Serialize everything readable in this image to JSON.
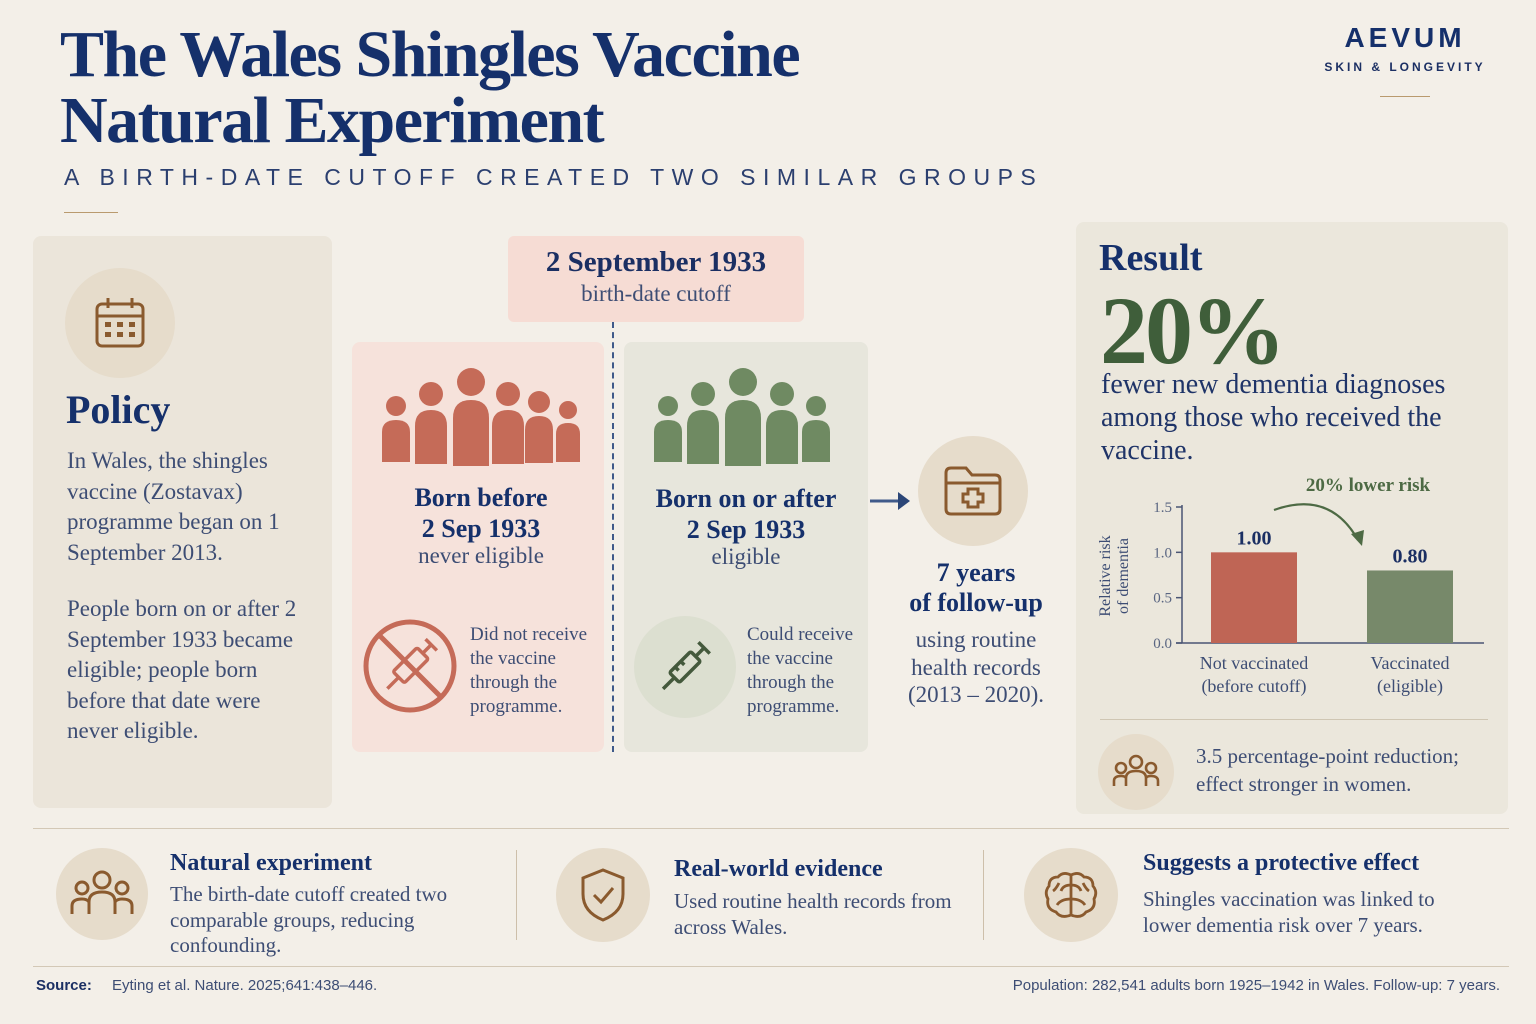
{
  "header": {
    "title_line1": "The Wales Shingles Vaccine",
    "title_line2": "Natural Experiment",
    "subtitle": "A BIRTH-DATE CUTOFF CREATED TWO SIMILAR GROUPS"
  },
  "brand": {
    "name": "AEVUM",
    "tagline": "SKIN & LONGEVITY"
  },
  "policy": {
    "title": "Policy",
    "icon": "calendar-icon",
    "text1": "In Wales, the shingles vaccine (Zostavax) programme began on 1 September 2013.",
    "text2": "People born on or after 2 September 1933 became eligible; people born before that date were never eligible."
  },
  "cutoff": {
    "date": "2 September 1933",
    "label": "birth-date cutoff"
  },
  "group_before": {
    "title_line1": "Born before",
    "title_line2": "2 Sep 1933",
    "status": "never eligible",
    "note": "Did not receive the vaccine through the programme.",
    "icon": "no-syringe-icon",
    "color": "#c56b58"
  },
  "group_after": {
    "title_line1": "Born on or after",
    "title_line2": "2 Sep 1933",
    "status": "eligible",
    "note": "Could receive the vaccine through the programme.",
    "icon": "syringe-icon",
    "color": "#6f8a62"
  },
  "followup": {
    "title_line1": "7 years",
    "title_line2": "of follow-up",
    "text": "using routine health records (2013 – 2020).",
    "icon": "medical-folder-icon"
  },
  "result": {
    "label": "Result",
    "percent": "20%",
    "text": "fewer new dementia diagnoses among those who received the vaccine.",
    "note": "3.5 percentage-point reduction; effect stronger in women."
  },
  "chart_data": {
    "type": "bar",
    "categories": [
      "Not vaccinated (before cutoff)",
      "Vaccinated (eligible)"
    ],
    "category_lines": [
      [
        "Not vaccinated",
        "(before cutoff)"
      ],
      [
        "Vaccinated",
        "(eligible)"
      ]
    ],
    "values": [
      1.0,
      0.8
    ],
    "value_labels": [
      "1.00",
      "0.80"
    ],
    "ylabel_lines": [
      "Relative risk",
      "of dementia"
    ],
    "yticks": [
      "1.5",
      "1.0",
      "0.5",
      "0.0"
    ],
    "ylim": [
      0,
      1.5
    ],
    "annotation": "20% lower risk",
    "colors": [
      "#bf6555",
      "#77896a"
    ]
  },
  "bottom": [
    {
      "icon": "people-group-icon",
      "title": "Natural experiment",
      "text": "The birth-date cutoff created two comparable groups, reducing confounding."
    },
    {
      "icon": "shield-check-icon",
      "title": "Real-world evidence",
      "text": "Used routine health records from across Wales."
    },
    {
      "icon": "brain-icon",
      "title": "Suggests a protective effect",
      "text": "Shingles vaccination was linked to lower dementia risk over 7 years."
    }
  ],
  "footer": {
    "source_label": "Source:",
    "source": "Eyting et al. Nature. 2025;641:438–446.",
    "population": "Population: 282,541 adults born 1925–1942 in Wales. Follow-up: 7 years."
  }
}
